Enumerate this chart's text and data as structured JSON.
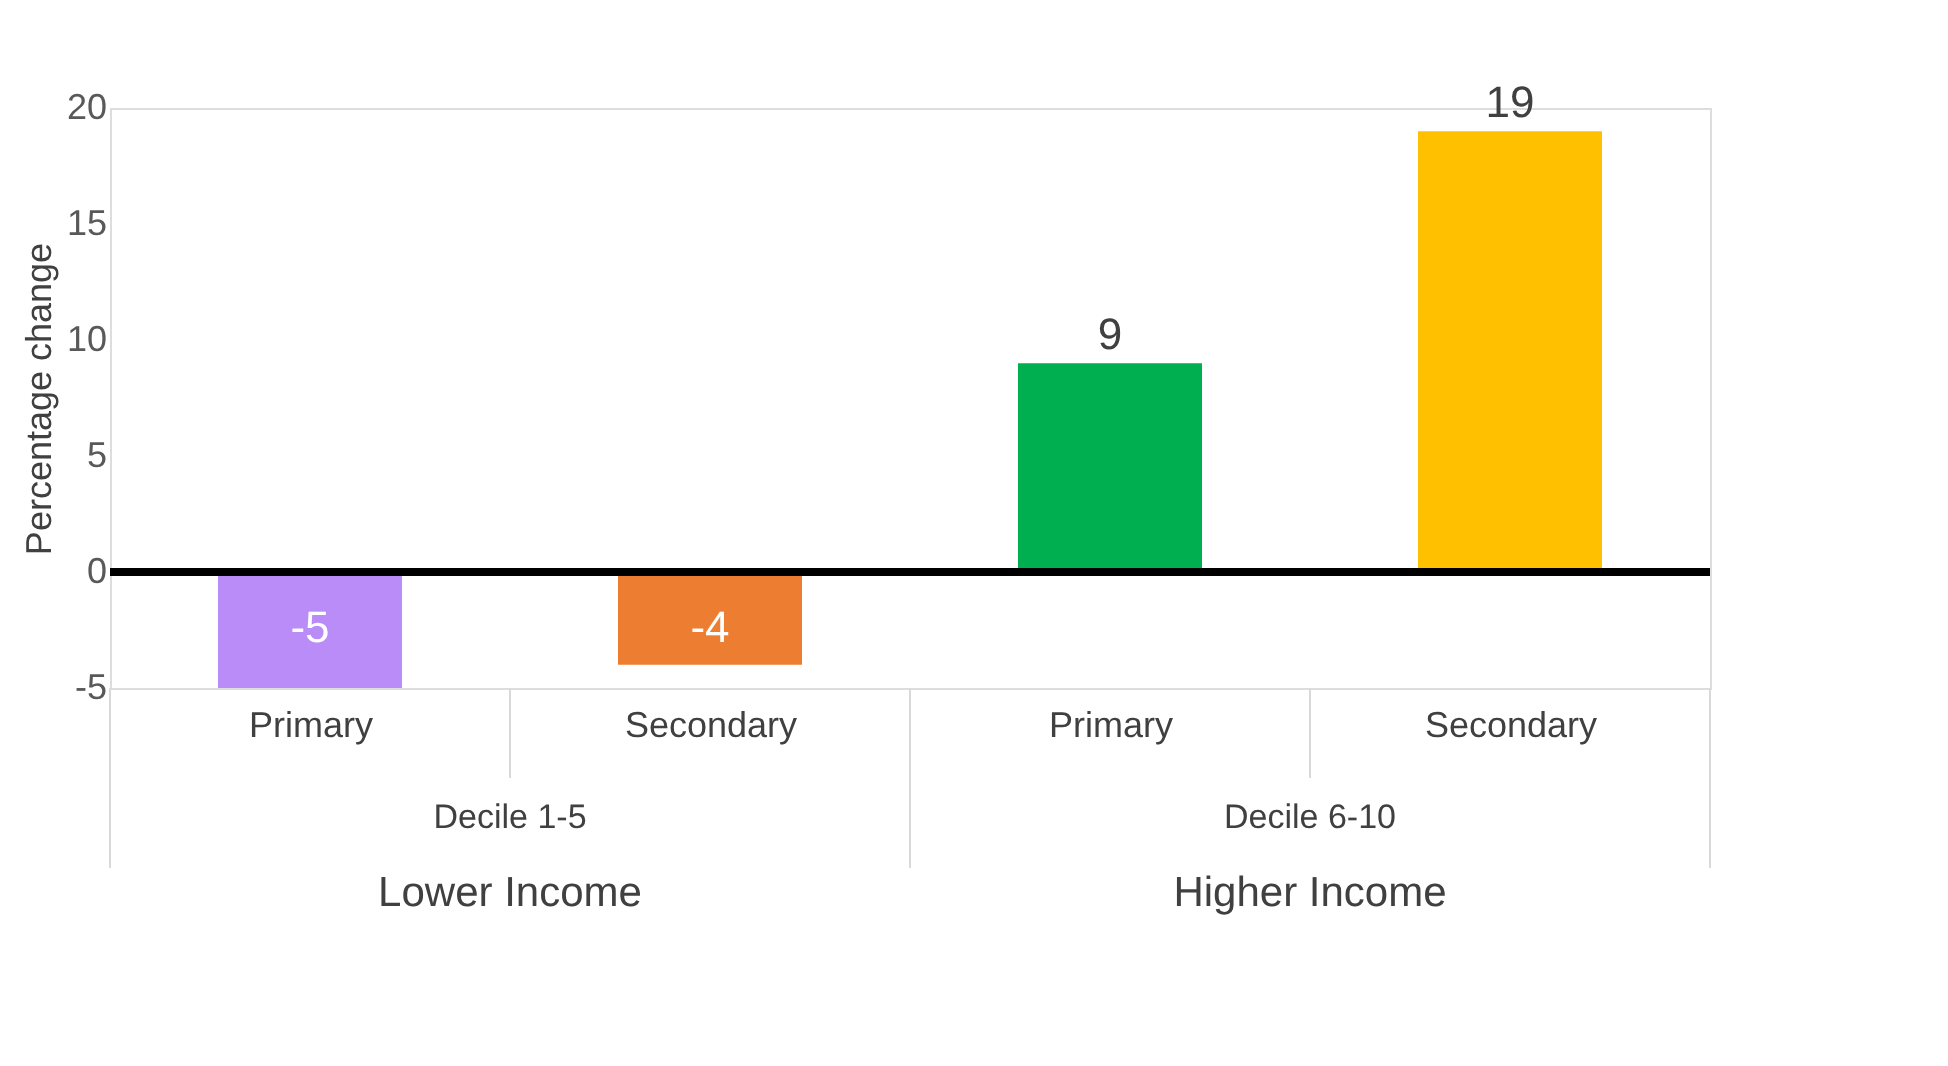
{
  "chart_data": {
    "type": "bar",
    "ylabel": "Percentage change",
    "categories": [
      "Primary",
      "Secondary",
      "Primary",
      "Secondary"
    ],
    "values": [
      -5,
      -4,
      9,
      19
    ],
    "colors": [
      "#b98cf8",
      "#ed7d31",
      "#00b050",
      "#ffc000"
    ],
    "ylim": [
      -5,
      20
    ],
    "yticks": [
      -5,
      0,
      5,
      10,
      15,
      20
    ],
    "data_labels": true,
    "grid": false,
    "ref_lines": [
      {
        "axis": "y",
        "value": 0,
        "color": "#000000"
      }
    ],
    "annotations": [
      "Decile 1-5",
      "Decile 6-10",
      "Lower Income",
      "Higher Income"
    ]
  }
}
